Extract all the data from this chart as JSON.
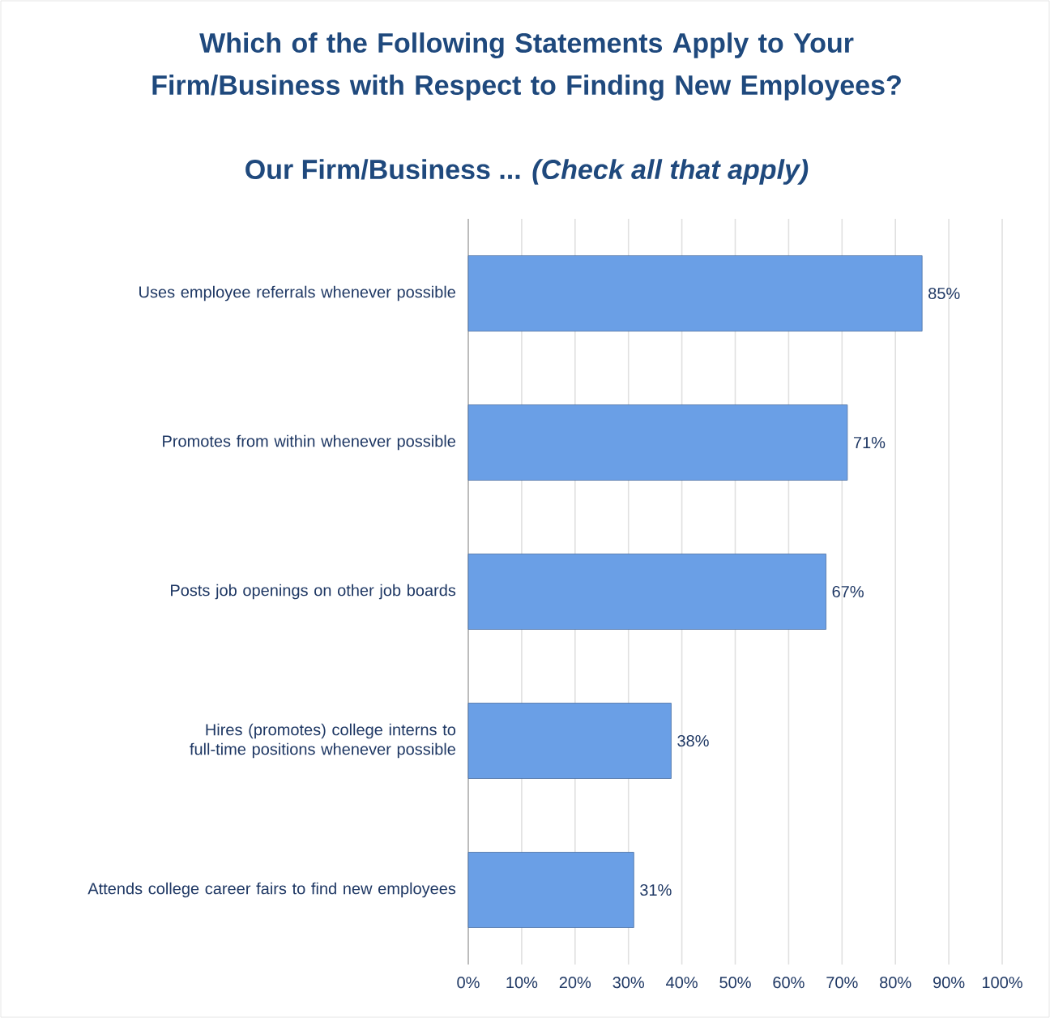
{
  "chart_data": {
    "type": "bar",
    "orientation": "horizontal",
    "title": "Which of the Following Statements Apply to Your Firm/Business with Respect to Finding New Employees?",
    "subtitle": "Our Firm/Business ...  *(Check all that apply)*",
    "categories": [
      "Uses employee referrals whenever possible",
      "Promotes from within whenever possible",
      "Posts job openings on other job boards",
      "Hires (promotes) college interns to full-time positions whenever possible",
      "Attends college career fairs to find new employees"
    ],
    "values": [
      85,
      71,
      67,
      38,
      31
    ],
    "value_labels": [
      "85%",
      "71%",
      "67%",
      "38%",
      "31%"
    ],
    "color": "#6a9fe6",
    "xlim": [
      0,
      100
    ],
    "xticks": [
      {
        "value": 0,
        "label": "0%"
      },
      {
        "value": 10,
        "label": "10%"
      },
      {
        "value": 20,
        "label": "20%"
      },
      {
        "value": 30,
        "label": "30%"
      },
      {
        "value": 40,
        "label": "40%"
      },
      {
        "value": 50,
        "label": "50%"
      },
      {
        "value": 60,
        "label": "60%"
      },
      {
        "value": 70,
        "label": "70%"
      },
      {
        "value": 80,
        "label": "80%"
      },
      {
        "value": 90,
        "label": "90%"
      },
      {
        "value": 100,
        "label": "100%"
      }
    ],
    "grid": "x"
  }
}
